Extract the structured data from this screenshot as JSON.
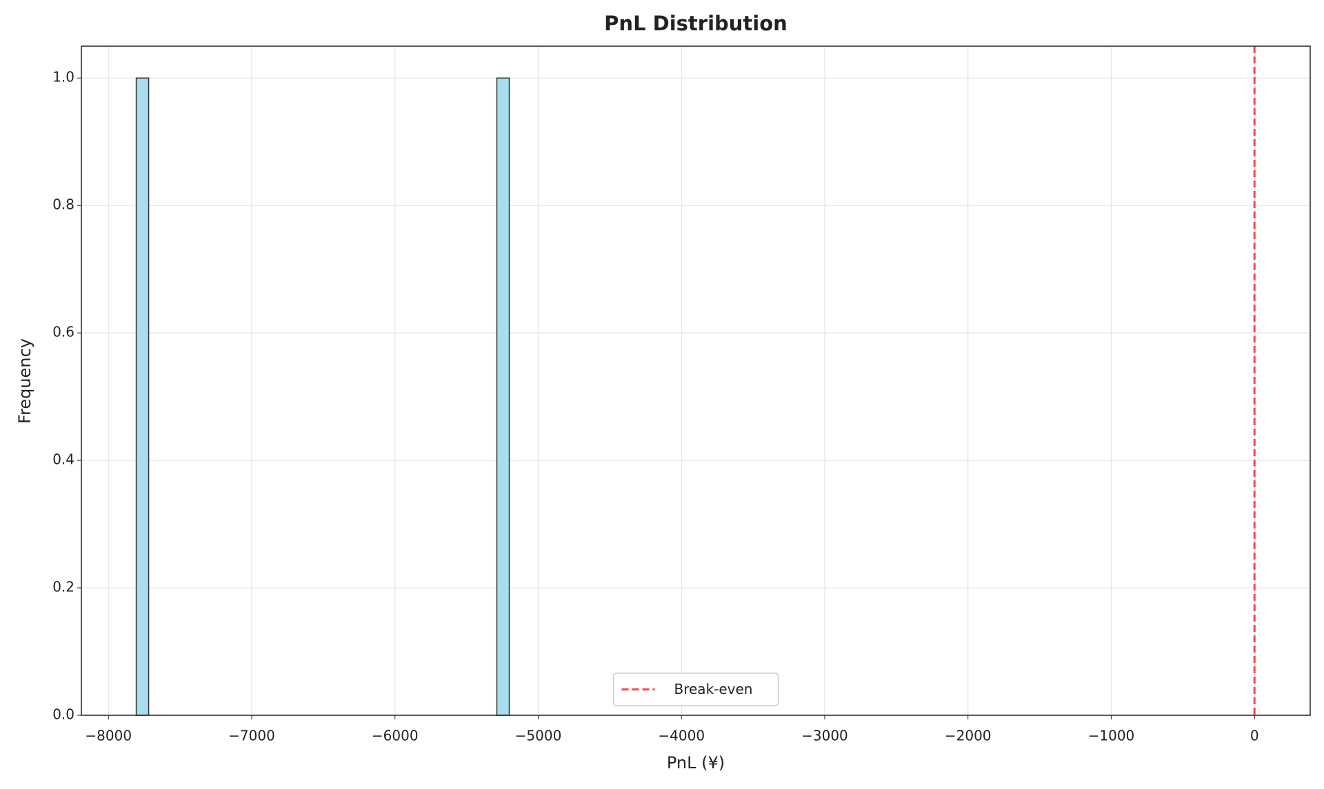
{
  "chart_data": {
    "type": "histogram",
    "title": "PnL Distribution",
    "x_label": "PnL (¥)",
    "y_label": "Frequency",
    "bins": [
      -7806,
      -7719.2,
      -7632.4,
      -7545.6,
      -7458.8,
      -7372,
      -7285.2,
      -7198.4,
      -7111.6,
      -7024.8,
      -6938,
      -6851.2,
      -6764.4,
      -6677.6,
      -6590.8,
      -6504,
      -6417.2,
      -6330.4,
      -6243.6,
      -6156.8,
      -6070,
      -5983.2,
      -5896.4,
      -5809.6,
      -5722.8,
      -5636,
      -5549.2,
      -5462.4,
      -5375.6,
      -5288.8,
      -5202
    ],
    "counts": [
      1,
      0,
      0,
      0,
      0,
      0,
      0,
      0,
      0,
      0,
      0,
      0,
      0,
      0,
      0,
      0,
      0,
      0,
      0,
      0,
      0,
      0,
      0,
      0,
      0,
      0,
      0,
      0,
      0,
      1
    ],
    "color": "#a8dcef",
    "edge_color": "#333333",
    "xlim": [
      -8189,
      389
    ],
    "ylim": [
      0,
      1.05
    ],
    "xticks": [
      {
        "value": -8000,
        "label": "−8000"
      },
      {
        "value": -7000,
        "label": "−7000"
      },
      {
        "value": -6000,
        "label": "−6000"
      },
      {
        "value": -5000,
        "label": "−5000"
      },
      {
        "value": -4000,
        "label": "−4000"
      },
      {
        "value": -3000,
        "label": "−3000"
      },
      {
        "value": -2000,
        "label": "−2000"
      },
      {
        "value": -1000,
        "label": "−1000"
      },
      0
    ],
    "yticks": [
      {
        "value": 0,
        "label": "0.0"
      },
      {
        "value": 0.2,
        "label": "0.2"
      },
      {
        "value": 0.4,
        "label": "0.4"
      },
      {
        "value": 0.6,
        "label": "0.6"
      },
      {
        "value": 0.8,
        "label": "0.8"
      },
      {
        "value": 1,
        "label": "1.0"
      }
    ],
    "grid": true,
    "vline": {
      "value": 0,
      "label": "Break-even",
      "color": "#ff4444"
    },
    "legend": "lower center"
  }
}
